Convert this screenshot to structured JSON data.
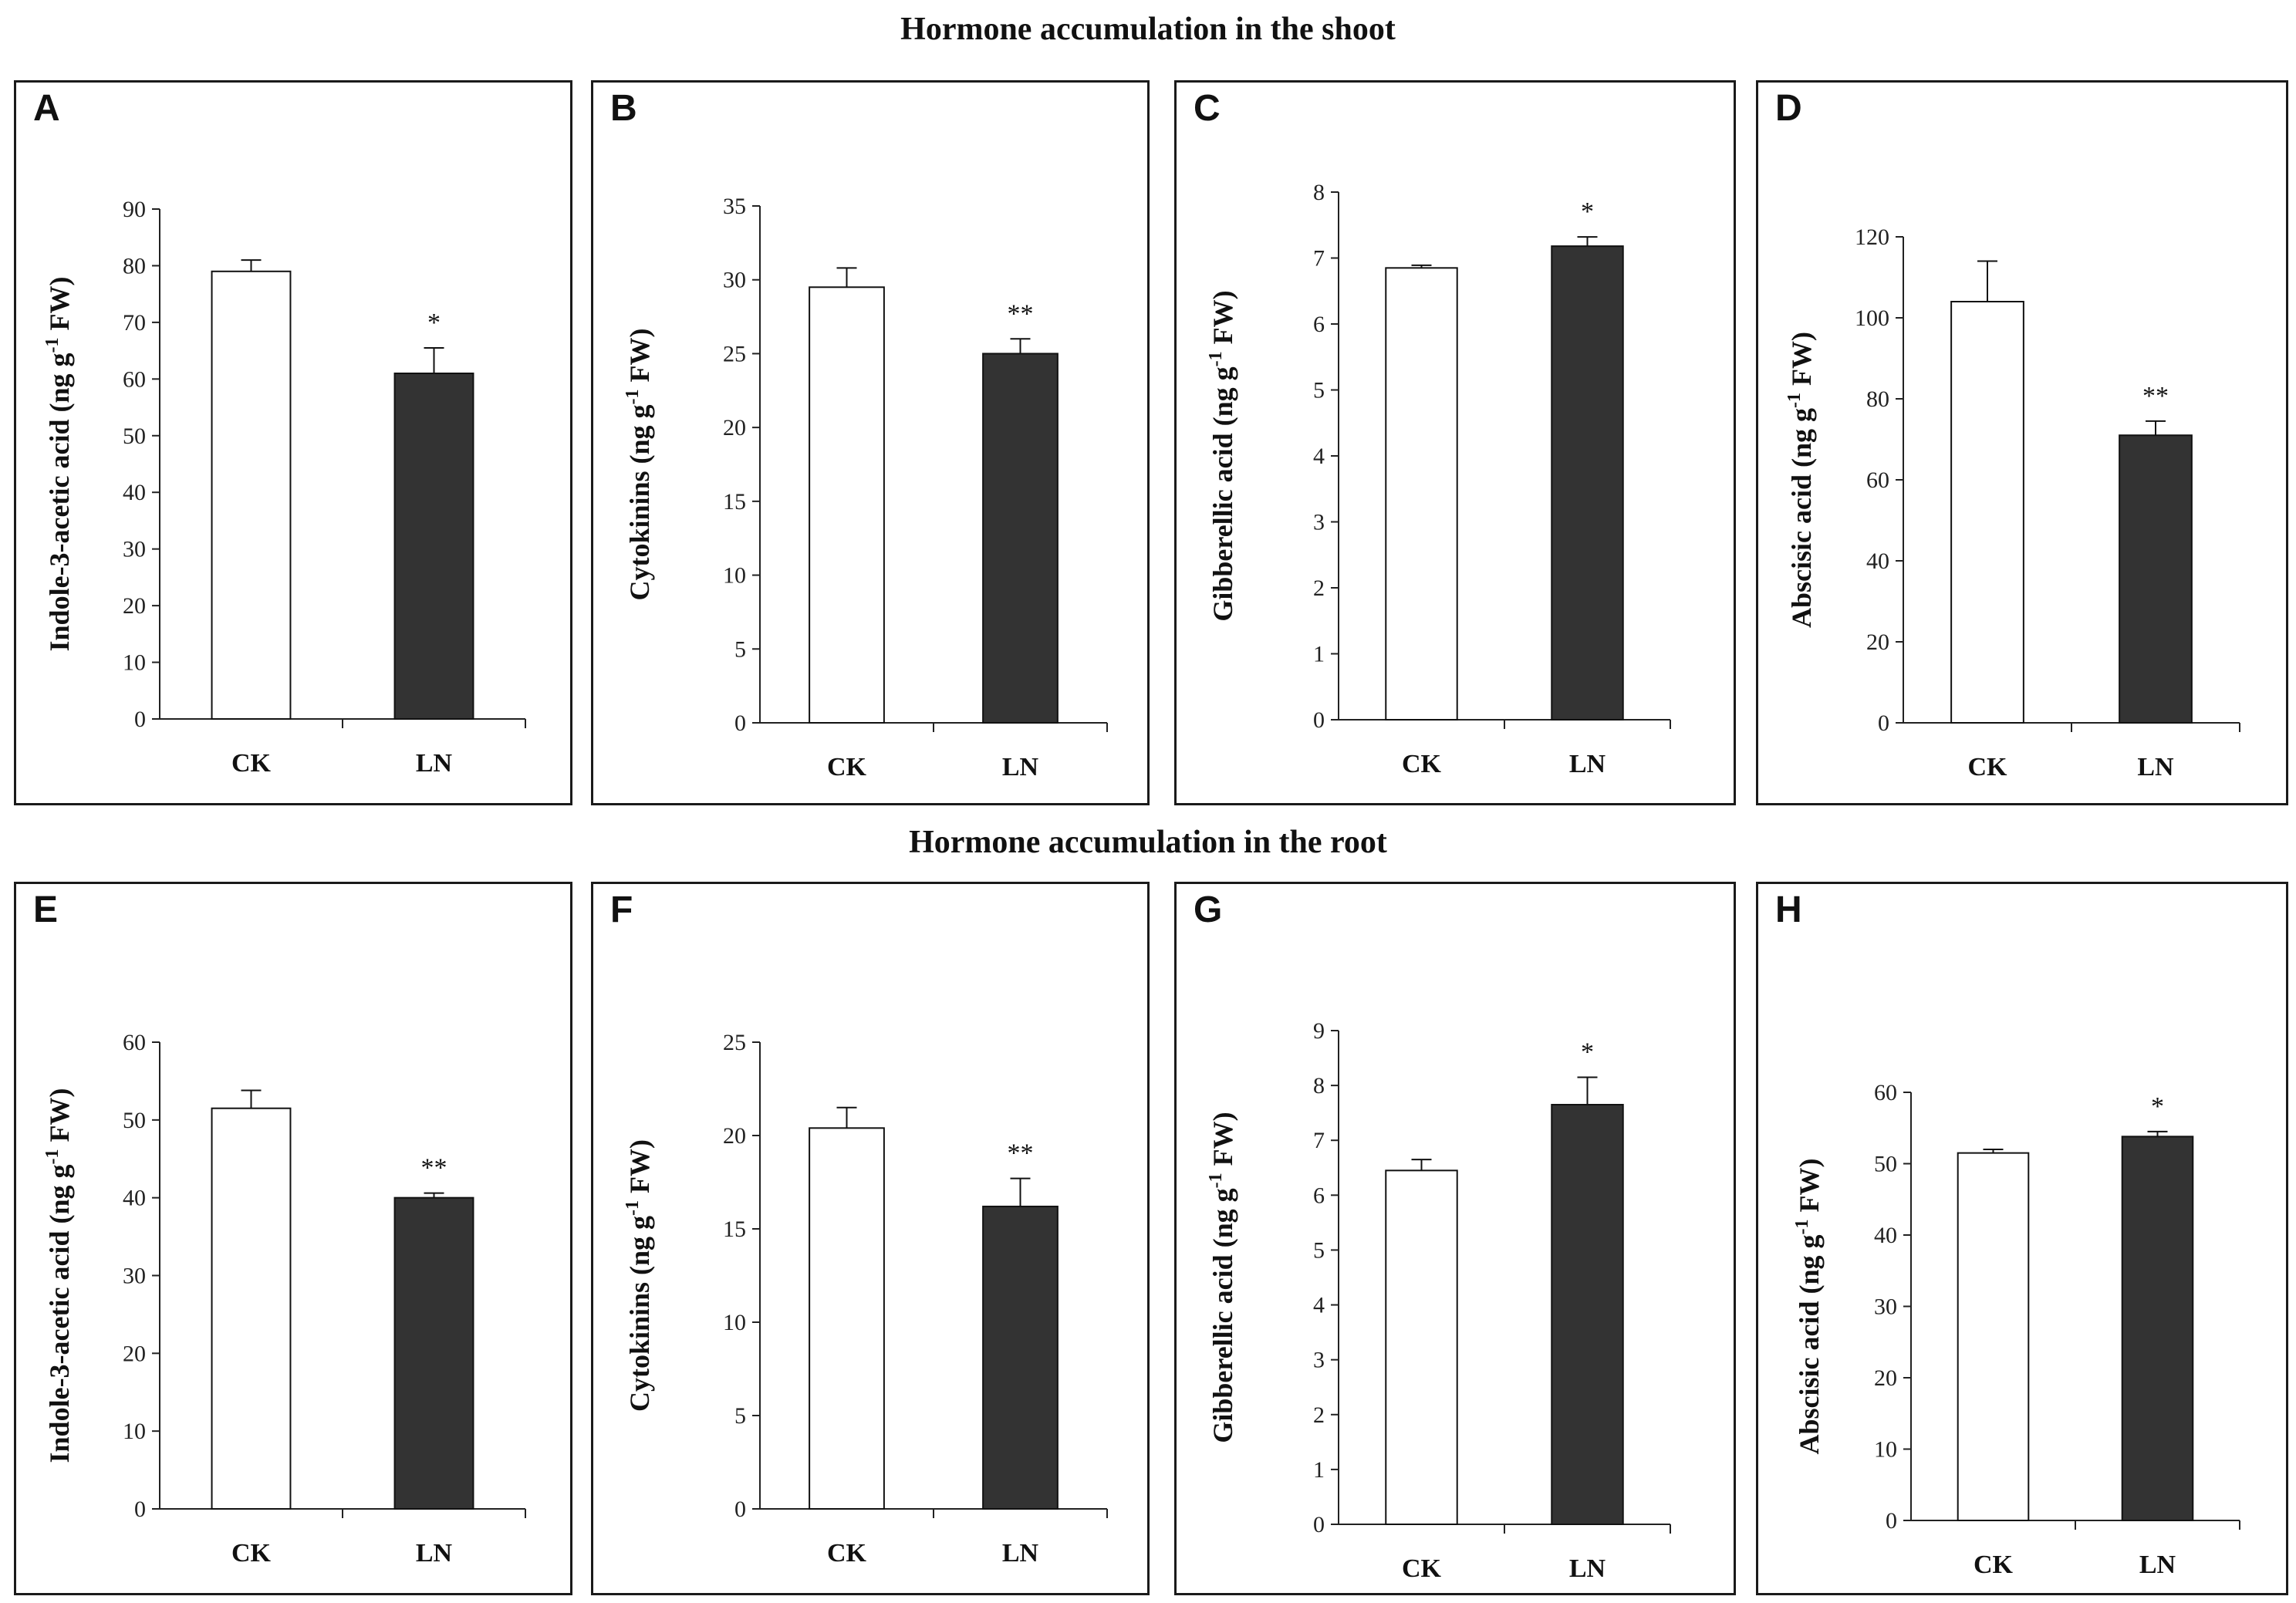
{
  "figure": {
    "shoot_title": "Hormone accumulation in the shoot",
    "root_title": "Hormone accumulation in the root"
  },
  "colors": {
    "CK": "#ffffff",
    "LN": "#333333",
    "axis": "#222222"
  },
  "chart_data": [
    {
      "panel": "A",
      "type": "bar",
      "ylabel": "Indole-3-acetic acid (ng g-1 FW)",
      "ylabel_main": "Indole-3-acetic acid (ng g",
      "ylabel_sup": "-1",
      "ylabel_tail": " FW)",
      "categories": [
        "CK",
        "LN"
      ],
      "values": [
        79,
        61
      ],
      "errors": [
        2,
        4.5
      ],
      "significance": [
        "",
        "*"
      ],
      "ylim": [
        0,
        90
      ],
      "yticks": [
        0,
        10,
        20,
        30,
        40,
        50,
        60,
        70,
        80,
        90
      ]
    },
    {
      "panel": "B",
      "type": "bar",
      "ylabel": "Cytokinins (ng g-1 FW)",
      "ylabel_main": "Cytokinins  (ng g",
      "ylabel_sup": "-1",
      "ylabel_tail": " FW)",
      "categories": [
        "CK",
        "LN"
      ],
      "values": [
        29.5,
        25
      ],
      "errors": [
        1.3,
        1
      ],
      "significance": [
        "",
        "**"
      ],
      "ylim": [
        0,
        35
      ],
      "yticks": [
        0,
        5,
        10,
        15,
        20,
        25,
        30,
        35
      ]
    },
    {
      "panel": "C",
      "type": "bar",
      "ylabel": "Gibberellic acid (ng g-1 FW)",
      "ylabel_main": "Gibberellic acid (ng g",
      "ylabel_sup": "-1",
      "ylabel_tail": " FW)",
      "categories": [
        "CK",
        "LN"
      ],
      "values": [
        6.85,
        7.18
      ],
      "errors": [
        0.04,
        0.14
      ],
      "significance": [
        "",
        "*"
      ],
      "ylim": [
        0,
        8
      ],
      "yticks": [
        0,
        1,
        2,
        3,
        4,
        5,
        6,
        7,
        8
      ]
    },
    {
      "panel": "D",
      "type": "bar",
      "ylabel": "Abscisic acid (ng g-1 FW)",
      "ylabel_main": "Abscisic acid (ng g",
      "ylabel_sup": "-1",
      "ylabel_tail": " FW)",
      "categories": [
        "CK",
        "LN"
      ],
      "values": [
        104,
        71
      ],
      "errors": [
        10,
        3.5
      ],
      "significance": [
        "",
        "**"
      ],
      "ylim": [
        0,
        120
      ],
      "yticks": [
        0,
        20,
        40,
        60,
        80,
        100,
        120
      ]
    },
    {
      "panel": "E",
      "type": "bar",
      "ylabel": "Indole-3-acetic acid (ng g-1 FW)",
      "ylabel_main": "Indole-3-acetic acid (ng g",
      "ylabel_sup": "-1",
      "ylabel_tail": " FW)",
      "categories": [
        "CK",
        "LN"
      ],
      "values": [
        51.5,
        40
      ],
      "errors": [
        2.3,
        0.6
      ],
      "significance": [
        "",
        "**"
      ],
      "ylim": [
        0,
        60
      ],
      "yticks": [
        0,
        10,
        20,
        30,
        40,
        50,
        60
      ]
    },
    {
      "panel": "F",
      "type": "bar",
      "ylabel": "Cytokinins (ng g-1 FW)",
      "ylabel_main": "Cytokinins  (ng g",
      "ylabel_sup": "-1",
      "ylabel_tail": " FW)",
      "categories": [
        "CK",
        "LN"
      ],
      "values": [
        20.4,
        16.2
      ],
      "errors": [
        1.1,
        1.5
      ],
      "significance": [
        "",
        "**"
      ],
      "ylim": [
        0,
        25
      ],
      "yticks": [
        0,
        5,
        10,
        15,
        20,
        25
      ]
    },
    {
      "panel": "G",
      "type": "bar",
      "ylabel": "Gibberellic acid (ng g-1 FW)",
      "ylabel_main": "Gibberellic acid (ng g",
      "ylabel_sup": "-1",
      "ylabel_tail": " FW)",
      "categories": [
        "CK",
        "LN"
      ],
      "values": [
        6.45,
        7.65
      ],
      "errors": [
        0.2,
        0.5
      ],
      "significance": [
        "",
        "*"
      ],
      "ylim": [
        0,
        9
      ],
      "yticks": [
        0,
        1,
        2,
        3,
        4,
        5,
        6,
        7,
        8,
        9
      ]
    },
    {
      "panel": "H",
      "type": "bar",
      "ylabel": "Abscisic acid (ng g-1 FW)",
      "ylabel_main": "Abscisic acid (ng g",
      "ylabel_sup": "-1",
      "ylabel_tail": " FW)",
      "categories": [
        "CK",
        "LN"
      ],
      "values": [
        51.5,
        53.8
      ],
      "errors": [
        0.5,
        0.7
      ],
      "significance": [
        "",
        "*"
      ],
      "ylim": [
        0,
        60
      ],
      "yticks": [
        0,
        10,
        20,
        30,
        40,
        50,
        60
      ]
    }
  ]
}
